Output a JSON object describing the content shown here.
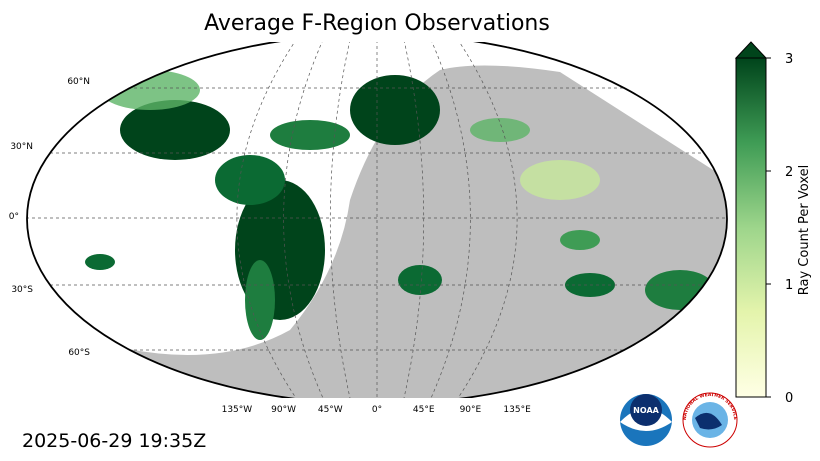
{
  "title": "Average F-Region Observations",
  "map": {
    "lat_labels": [
      "60°N",
      "30°N",
      "0°",
      "30°S",
      "60°S"
    ],
    "lon_labels": [
      "135°W",
      "90°W",
      "45°W",
      "0°",
      "45°E",
      "90°E",
      "135°E"
    ]
  },
  "colorbar": {
    "label": "Ray Count Per Voxel",
    "lim": [
      0,
      3
    ],
    "ticks": [
      0,
      1,
      2,
      3
    ]
  },
  "timestamp": "2025-06-29 19:35Z",
  "logos": {
    "noaa": "NOAA",
    "nws": "NATIONAL WEATHER SERVICE"
  }
}
